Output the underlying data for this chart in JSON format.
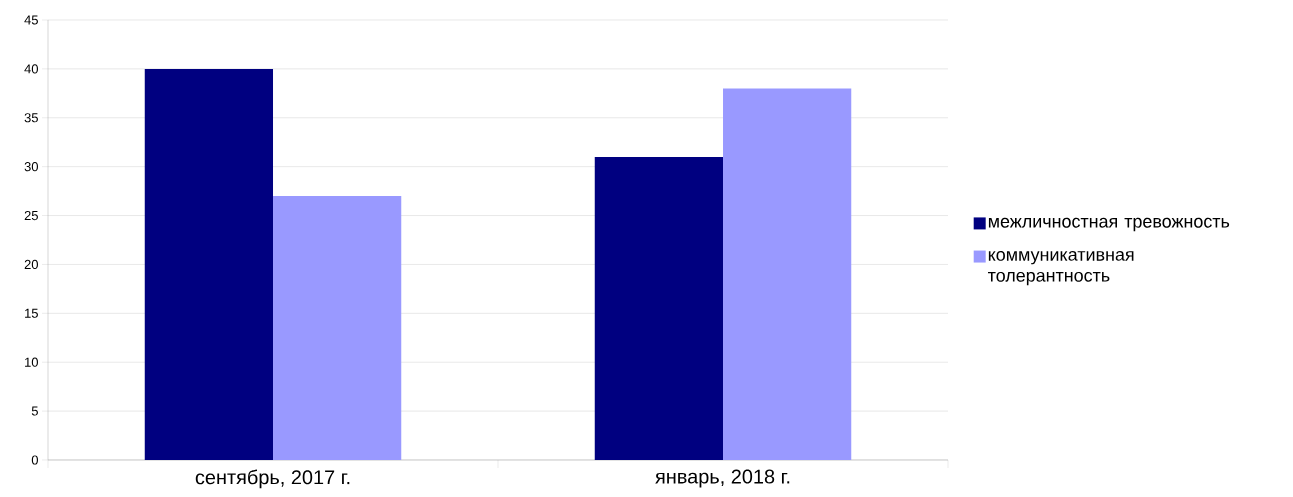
{
  "chart_data": {
    "type": "bar",
    "categories": [
      "сентябрь, 2017 г.",
      "январь, 2018 г."
    ],
    "series": [
      {
        "name": "межличностная тревожность",
        "color": "#000080",
        "values": [
          40,
          31
        ]
      },
      {
        "name": "коммуникативная толерантность",
        "color": "#9999ff",
        "values": [
          27,
          38
        ]
      }
    ],
    "ylim": [
      0,
      45
    ],
    "yticks": [
      0,
      5,
      10,
      15,
      20,
      25,
      30,
      35,
      40,
      45
    ],
    "grid": "y",
    "legend": "right"
  }
}
